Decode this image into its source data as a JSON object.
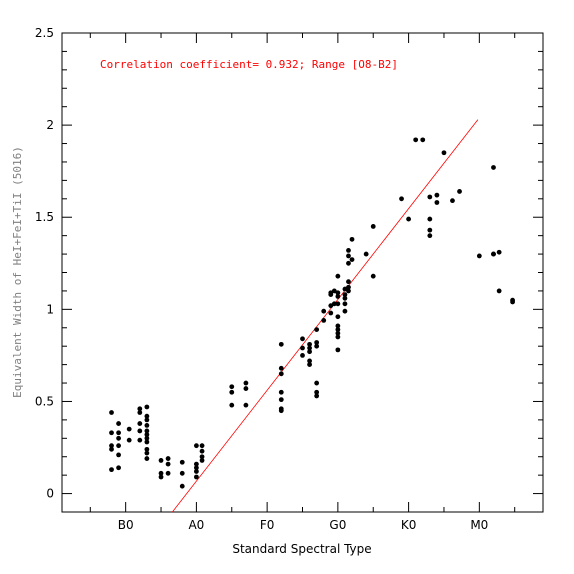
{
  "chart_data": {
    "type": "scatter",
    "title": "",
    "xlabel": "Standard Spectral Type",
    "ylabel": "Equivalent Width of HeI+FeI+TiI (5016)",
    "xlim": [
      -0.9,
      5.9
    ],
    "ylim": [
      -0.1,
      2.5
    ],
    "x_ticks": [
      {
        "value": 0,
        "label": "B0"
      },
      {
        "value": 1,
        "label": "A0"
      },
      {
        "value": 2,
        "label": "F0"
      },
      {
        "value": 3,
        "label": "G0"
      },
      {
        "value": 4,
        "label": "K0"
      },
      {
        "value": 5,
        "label": "M0"
      }
    ],
    "y_ticks": [
      {
        "value": 0,
        "label": "0"
      },
      {
        "value": 0.5,
        "label": "0.5"
      },
      {
        "value": 1,
        "label": "1"
      },
      {
        "value": 1.5,
        "label": "1.5"
      },
      {
        "value": 2,
        "label": "2"
      },
      {
        "value": 2.5,
        "label": "2.5"
      }
    ],
    "annotation": "Correlation coefficient= 0.932; Range [O8-B2]",
    "fit_line": {
      "x": [
        0.66,
        4.98
      ],
      "y": [
        -0.1,
        2.03
      ]
    },
    "colors": {
      "points": "#000000",
      "fit": "#ff0000",
      "annotation": "#ff0000",
      "ylabel": "#808080"
    },
    "points": [
      [
        -0.2,
        0.44
      ],
      [
        -0.2,
        0.33
      ],
      [
        -0.2,
        0.26
      ],
      [
        -0.2,
        0.24
      ],
      [
        -0.2,
        0.13
      ],
      [
        -0.1,
        0.38
      ],
      [
        -0.1,
        0.33
      ],
      [
        -0.1,
        0.3
      ],
      [
        -0.1,
        0.26
      ],
      [
        -0.1,
        0.21
      ],
      [
        -0.1,
        0.14
      ],
      [
        0.05,
        0.35
      ],
      [
        0.05,
        0.29
      ],
      [
        0.2,
        0.46
      ],
      [
        0.2,
        0.44
      ],
      [
        0.2,
        0.38
      ],
      [
        0.2,
        0.34
      ],
      [
        0.2,
        0.29
      ],
      [
        0.3,
        0.47
      ],
      [
        0.3,
        0.42
      ],
      [
        0.3,
        0.4
      ],
      [
        0.3,
        0.37
      ],
      [
        0.3,
        0.34
      ],
      [
        0.3,
        0.32
      ],
      [
        0.3,
        0.3
      ],
      [
        0.3,
        0.28
      ],
      [
        0.3,
        0.24
      ],
      [
        0.3,
        0.22
      ],
      [
        0.3,
        0.19
      ],
      [
        0.5,
        0.18
      ],
      [
        0.5,
        0.11
      ],
      [
        0.5,
        0.09
      ],
      [
        0.6,
        0.19
      ],
      [
        0.6,
        0.16
      ],
      [
        0.6,
        0.11
      ],
      [
        0.8,
        0.17
      ],
      [
        0.8,
        0.11
      ],
      [
        0.8,
        0.04
      ],
      [
        1.0,
        0.26
      ],
      [
        1.0,
        0.16
      ],
      [
        1.0,
        0.14
      ],
      [
        1.0,
        0.12
      ],
      [
        1.0,
        0.09
      ],
      [
        1.08,
        0.26
      ],
      [
        1.08,
        0.23
      ],
      [
        1.08,
        0.2
      ],
      [
        1.08,
        0.18
      ],
      [
        1.5,
        0.58
      ],
      [
        1.5,
        0.55
      ],
      [
        1.5,
        0.48
      ],
      [
        1.7,
        0.6
      ],
      [
        1.7,
        0.57
      ],
      [
        1.7,
        0.48
      ],
      [
        2.2,
        0.81
      ],
      [
        2.2,
        0.68
      ],
      [
        2.2,
        0.65
      ],
      [
        2.2,
        0.55
      ],
      [
        2.2,
        0.51
      ],
      [
        2.2,
        0.46
      ],
      [
        2.2,
        0.45
      ],
      [
        2.5,
        0.84
      ],
      [
        2.5,
        0.79
      ],
      [
        2.5,
        0.75
      ],
      [
        2.6,
        0.81
      ],
      [
        2.6,
        0.79
      ],
      [
        2.6,
        0.77
      ],
      [
        2.6,
        0.72
      ],
      [
        2.6,
        0.7
      ],
      [
        2.7,
        0.89
      ],
      [
        2.7,
        0.82
      ],
      [
        2.7,
        0.8
      ],
      [
        2.7,
        0.6
      ],
      [
        2.7,
        0.55
      ],
      [
        2.7,
        0.53
      ],
      [
        2.8,
        0.99
      ],
      [
        2.8,
        0.94
      ],
      [
        2.9,
        1.09
      ],
      [
        2.9,
        1.08
      ],
      [
        2.9,
        1.02
      ],
      [
        2.9,
        0.98
      ],
      [
        2.95,
        1.1
      ],
      [
        2.95,
        1.03
      ],
      [
        3.0,
        1.18
      ],
      [
        3.0,
        1.09
      ],
      [
        3.0,
        1.07
      ],
      [
        3.0,
        1.03
      ],
      [
        3.0,
        0.96
      ],
      [
        3.0,
        0.91
      ],
      [
        3.0,
        0.89
      ],
      [
        3.0,
        0.87
      ],
      [
        3.0,
        0.85
      ],
      [
        3.0,
        0.78
      ],
      [
        3.1,
        1.11
      ],
      [
        3.1,
        1.08
      ],
      [
        3.1,
        1.06
      ],
      [
        3.1,
        1.03
      ],
      [
        3.1,
        0.99
      ],
      [
        3.15,
        1.32
      ],
      [
        3.15,
        1.29
      ],
      [
        3.15,
        1.25
      ],
      [
        3.15,
        1.15
      ],
      [
        3.15,
        1.12
      ],
      [
        3.15,
        1.1
      ],
      [
        3.2,
        1.38
      ],
      [
        3.2,
        1.27
      ],
      [
        3.4,
        1.3
      ],
      [
        3.5,
        1.45
      ],
      [
        3.5,
        1.18
      ],
      [
        3.9,
        1.6
      ],
      [
        4.0,
        1.49
      ],
      [
        4.1,
        1.92
      ],
      [
        4.2,
        1.92
      ],
      [
        4.3,
        1.61
      ],
      [
        4.3,
        1.49
      ],
      [
        4.3,
        1.43
      ],
      [
        4.3,
        1.4
      ],
      [
        4.4,
        1.62
      ],
      [
        4.4,
        1.58
      ],
      [
        4.5,
        1.85
      ],
      [
        4.62,
        1.59
      ],
      [
        4.72,
        1.64
      ],
      [
        5.0,
        1.29
      ],
      [
        5.2,
        1.77
      ],
      [
        5.2,
        1.3
      ],
      [
        5.2,
        1.3
      ],
      [
        5.28,
        1.31
      ],
      [
        5.28,
        1.1
      ],
      [
        5.47,
        1.05
      ],
      [
        5.47,
        1.04
      ]
    ]
  }
}
